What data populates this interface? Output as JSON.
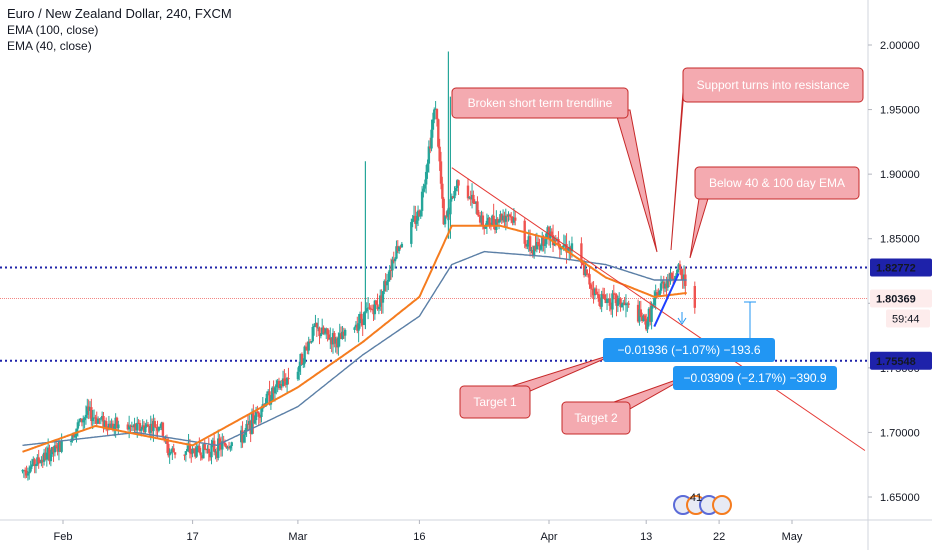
{
  "legend": {
    "title": "Euro / New Zealand Dollar, 240, FXCM",
    "ema100": "EMA (100, close)",
    "ema40": "EMA (40, close)"
  },
  "chart_data": {
    "type": "candlestick",
    "symbol": "EURNZD",
    "timeframe": "240",
    "ylim": [
      1.625,
      2.035
    ],
    "y_ticks": [
      "2.00000",
      "1.95000",
      "1.90000",
      "1.85000",
      "1.80000",
      "1.75000",
      "1.70000",
      "1.65000"
    ],
    "y_tick_values": [
      2.0,
      1.95,
      1.9,
      1.85,
      1.8,
      1.75,
      1.7,
      1.65
    ],
    "x_ticks": [
      "Feb",
      "17",
      "Mar",
      "16",
      "Apr",
      "13",
      "22",
      "May"
    ],
    "x_tick_dates": [
      "2020-02-01",
      "2020-02-17",
      "2020-03-01",
      "2020-03-16",
      "2020-04-01",
      "2020-04-13",
      "2020-04-22",
      "2020-05-01"
    ],
    "price_path": [
      [
        "2020-01-27",
        1.67
      ],
      [
        "2020-02-01",
        1.69
      ],
      [
        "2020-02-04",
        1.715
      ],
      [
        "2020-02-07",
        1.705
      ],
      [
        "2020-02-10",
        1.703
      ],
      [
        "2020-02-13",
        1.706
      ],
      [
        "2020-02-14",
        1.685
      ],
      [
        "2020-02-17",
        1.685
      ],
      [
        "2020-02-20",
        1.688
      ],
      [
        "2020-02-23",
        1.695
      ],
      [
        "2020-02-26",
        1.725
      ],
      [
        "2020-03-01",
        1.75
      ],
      [
        "2020-03-03",
        1.78
      ],
      [
        "2020-03-06",
        1.77
      ],
      [
        "2020-03-09",
        1.79
      ],
      [
        "2020-03-11",
        1.8
      ],
      [
        "2020-03-13",
        1.84
      ],
      [
        "2020-03-16",
        1.87
      ],
      [
        "2020-03-18",
        1.955
      ],
      [
        "2020-03-19",
        1.86
      ],
      [
        "2020-03-21",
        1.9
      ],
      [
        "2020-03-24",
        1.86
      ],
      [
        "2020-03-27",
        1.87
      ],
      [
        "2020-03-30",
        1.84
      ],
      [
        "2020-04-01",
        1.855
      ],
      [
        "2020-04-04",
        1.84
      ],
      [
        "2020-04-07",
        1.805
      ],
      [
        "2020-04-10",
        1.8
      ],
      [
        "2020-04-13",
        1.785
      ],
      [
        "2020-04-15",
        1.815
      ],
      [
        "2020-04-17",
        1.825
      ],
      [
        "2020-04-19",
        1.803
      ]
    ],
    "spikes": [
      [
        "2020-03-09",
        1.91
      ],
      [
        "2020-03-19",
        1.995
      ],
      [
        "2020-03-19",
        1.96
      ]
    ],
    "ema100_path": [
      [
        "2020-01-27",
        1.69
      ],
      [
        "2020-02-10",
        1.7
      ],
      [
        "2020-02-20",
        1.69
      ],
      [
        "2020-03-01",
        1.72
      ],
      [
        "2020-03-09",
        1.76
      ],
      [
        "2020-03-16",
        1.79
      ],
      [
        "2020-03-20",
        1.83
      ],
      [
        "2020-03-24",
        1.84
      ],
      [
        "2020-04-01",
        1.836
      ],
      [
        "2020-04-08",
        1.83
      ],
      [
        "2020-04-14",
        1.818
      ],
      [
        "2020-04-18",
        1.818
      ]
    ],
    "ema40_path": [
      [
        "2020-01-27",
        1.685
      ],
      [
        "2020-02-05",
        1.705
      ],
      [
        "2020-02-17",
        1.69
      ],
      [
        "2020-03-01",
        1.735
      ],
      [
        "2020-03-09",
        1.77
      ],
      [
        "2020-03-16",
        1.805
      ],
      [
        "2020-03-20",
        1.86
      ],
      [
        "2020-03-26",
        1.86
      ],
      [
        "2020-04-01",
        1.85
      ],
      [
        "2020-04-08",
        1.82
      ],
      [
        "2020-04-14",
        1.805
      ],
      [
        "2020-04-18",
        1.808
      ]
    ],
    "trendline": [
      [
        "2020-03-20",
        1.905
      ],
      [
        "2020-05-10",
        1.686
      ]
    ],
    "support_up_line": [
      [
        "2020-04-14",
        1.782
      ],
      [
        "2020-04-17",
        1.823
      ]
    ],
    "horizontal_levels": [
      {
        "value": 1.82772,
        "label": "1.82772",
        "style": "dotted",
        "color": "#1e22aa"
      },
      {
        "value": 1.80369,
        "label": "1.80369",
        "style": "solid-thin",
        "color": "#ef5350"
      },
      {
        "value": 1.75548,
        "label": "1.75548",
        "style": "dotted",
        "color": "#1e22aa"
      }
    ],
    "countdown": "59:44",
    "annotations": [
      {
        "text": "Broken short term trendline"
      },
      {
        "text": "Support turns into resistance"
      },
      {
        "text": "Below 40 & 100 day EMA"
      },
      {
        "text": "Target 1"
      },
      {
        "text": "Target 2"
      }
    ],
    "measurements": [
      {
        "text": "−0.01936 (−1.07%) −193.6"
      },
      {
        "text": "−0.03909 (−2.17%) −390.9"
      }
    ],
    "events_badge": "41",
    "colors": {
      "candle_up": "#26a69a",
      "candle_down": "#ef5350",
      "ema100": "#5b7fa6",
      "ema40": "#f57c1f",
      "trendline": "#e53935",
      "support_line": "#1e40ff",
      "level": "#1e22aa",
      "price_line": "#ef5350",
      "callout_fill": "#f4aab0",
      "callout_stroke": "#c62828",
      "measure_fill": "#2196f3"
    }
  }
}
